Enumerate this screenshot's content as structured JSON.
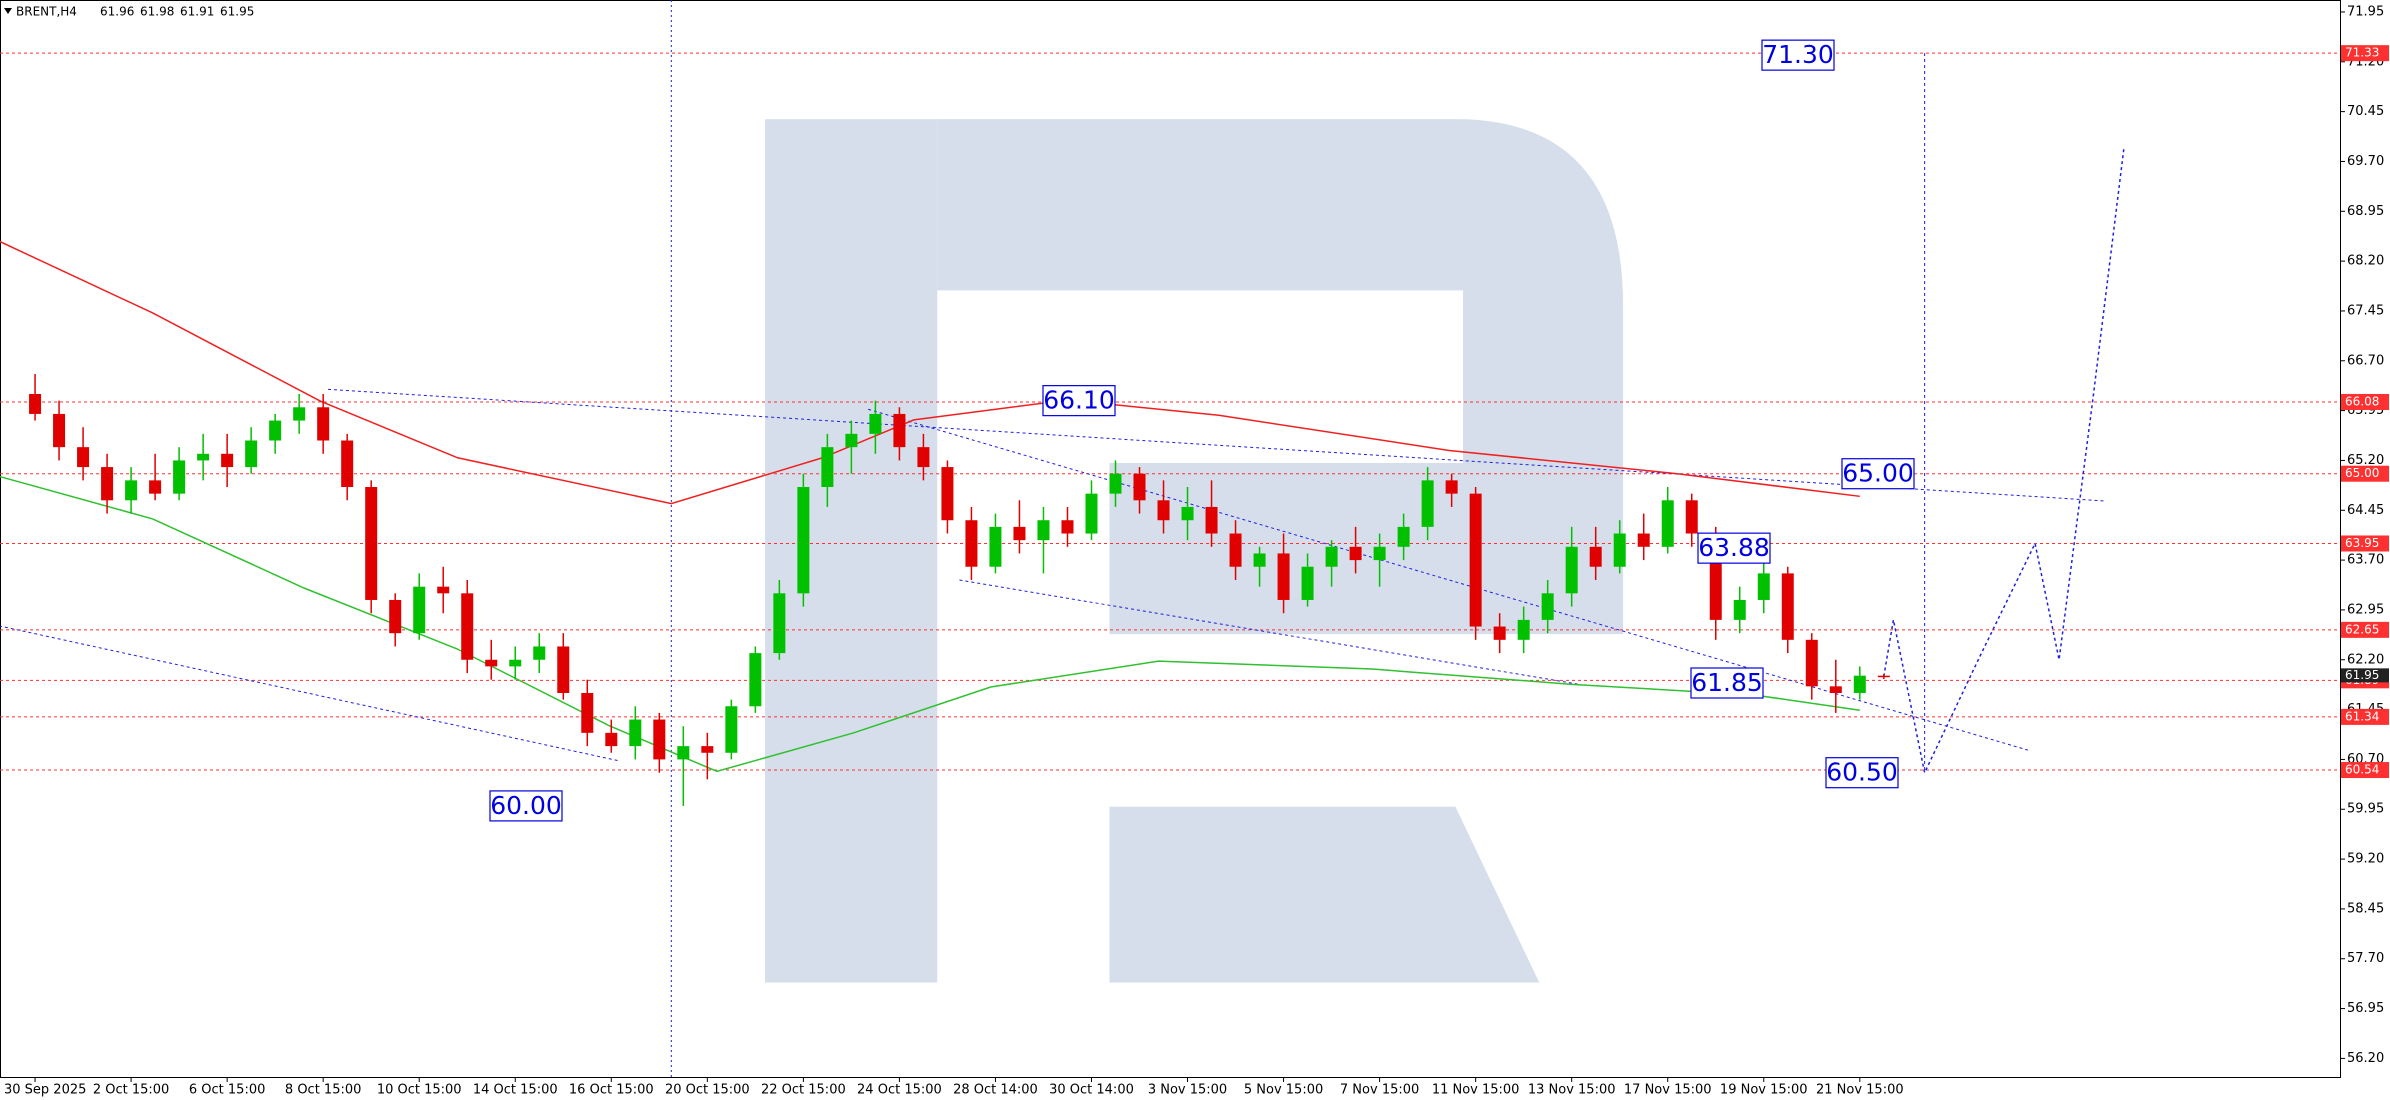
{
  "chart_data": {
    "type": "candlestick",
    "title": "BRENT,H4",
    "categories": [
      "30 Sep 2025",
      null,
      null,
      null,
      "2 Oct 15:00",
      null,
      null,
      null,
      "6 Oct 15:00",
      null,
      null,
      null,
      "8 Oct 15:00",
      null,
      null,
      null,
      "10 Oct 15:00",
      null,
      null,
      null,
      "14 Oct 15:00",
      null,
      null,
      null,
      "16 Oct 15:00",
      null,
      null,
      null,
      "20 Oct 15:00",
      null,
      null,
      null,
      "22 Oct 15:00",
      null,
      null,
      null,
      "24 Oct 15:00",
      null,
      null,
      null,
      "28 Oct 14:00",
      null,
      null,
      null,
      "30 Oct 14:00",
      null,
      null,
      null,
      "3 Nov 15:00",
      null,
      null,
      null,
      "5 Nov 15:00",
      null,
      null,
      null,
      "7 Nov 15:00",
      null,
      null,
      null,
      "11 Nov 15:00",
      null,
      null,
      null,
      "13 Nov 15:00",
      null,
      null,
      null,
      "17 Nov 15:00",
      null,
      null,
      null,
      "19 Nov 15:00",
      null,
      null,
      null,
      "21 Nov 15:00",
      null
    ],
    "ohlc": [
      [
        66.2,
        66.5,
        65.8,
        65.9
      ],
      [
        65.9,
        66.1,
        65.2,
        65.4
      ],
      [
        65.4,
        65.7,
        64.9,
        65.1
      ],
      [
        65.1,
        65.3,
        64.4,
        64.6
      ],
      [
        64.6,
        65.1,
        64.4,
        64.9
      ],
      [
        64.9,
        65.3,
        64.6,
        64.7
      ],
      [
        64.7,
        65.4,
        64.6,
        65.2
      ],
      [
        65.2,
        65.6,
        64.9,
        65.3
      ],
      [
        65.3,
        65.6,
        64.8,
        65.1
      ],
      [
        65.1,
        65.7,
        65.0,
        65.5
      ],
      [
        65.5,
        65.9,
        65.3,
        65.8
      ],
      [
        65.8,
        66.2,
        65.6,
        66.0
      ],
      [
        66.0,
        66.2,
        65.3,
        65.5
      ],
      [
        65.5,
        65.6,
        64.6,
        64.8
      ],
      [
        64.8,
        64.9,
        62.9,
        63.1
      ],
      [
        63.1,
        63.2,
        62.4,
        62.6
      ],
      [
        62.6,
        63.5,
        62.5,
        63.3
      ],
      [
        63.3,
        63.6,
        62.9,
        63.2
      ],
      [
        63.2,
        63.4,
        62.0,
        62.2
      ],
      [
        62.2,
        62.5,
        61.9,
        62.1
      ],
      [
        62.1,
        62.4,
        61.9,
        62.2
      ],
      [
        62.2,
        62.6,
        62.0,
        62.4
      ],
      [
        62.4,
        62.6,
        61.6,
        61.7
      ],
      [
        61.7,
        61.9,
        60.9,
        61.1
      ],
      [
        61.1,
        61.3,
        60.8,
        60.9
      ],
      [
        60.9,
        61.5,
        60.7,
        61.3
      ],
      [
        61.3,
        61.4,
        60.5,
        60.7
      ],
      [
        60.7,
        61.2,
        60.0,
        60.9
      ],
      [
        60.9,
        61.1,
        60.4,
        60.8
      ],
      [
        60.8,
        61.6,
        60.7,
        61.5
      ],
      [
        61.5,
        62.4,
        61.4,
        62.3
      ],
      [
        62.3,
        63.4,
        62.2,
        63.2
      ],
      [
        63.2,
        65.0,
        63.0,
        64.8
      ],
      [
        64.8,
        65.6,
        64.5,
        65.4
      ],
      [
        65.4,
        65.8,
        65.0,
        65.6
      ],
      [
        65.6,
        66.1,
        65.3,
        65.9
      ],
      [
        65.9,
        66.0,
        65.2,
        65.4
      ],
      [
        65.4,
        65.6,
        64.9,
        65.1
      ],
      [
        65.1,
        65.2,
        64.1,
        64.3
      ],
      [
        64.3,
        64.5,
        63.4,
        63.6
      ],
      [
        63.6,
        64.4,
        63.5,
        64.2
      ],
      [
        64.2,
        64.6,
        63.8,
        64.0
      ],
      [
        64.0,
        64.5,
        63.5,
        64.3
      ],
      [
        64.3,
        64.5,
        63.9,
        64.1
      ],
      [
        64.1,
        64.9,
        64.0,
        64.7
      ],
      [
        64.7,
        65.2,
        64.5,
        65.0
      ],
      [
        65.0,
        65.1,
        64.4,
        64.6
      ],
      [
        64.6,
        64.9,
        64.1,
        64.3
      ],
      [
        64.3,
        64.8,
        64.0,
        64.5
      ],
      [
        64.5,
        64.9,
        63.9,
        64.1
      ],
      [
        64.1,
        64.3,
        63.4,
        63.6
      ],
      [
        63.6,
        63.9,
        63.3,
        63.8
      ],
      [
        63.8,
        64.1,
        62.9,
        63.1
      ],
      [
        63.1,
        63.8,
        63.0,
        63.6
      ],
      [
        63.6,
        64.0,
        63.3,
        63.9
      ],
      [
        63.9,
        64.2,
        63.5,
        63.7
      ],
      [
        63.7,
        64.1,
        63.3,
        63.9
      ],
      [
        63.9,
        64.4,
        63.7,
        64.2
      ],
      [
        64.2,
        65.1,
        64.0,
        64.9
      ],
      [
        64.9,
        65.0,
        64.5,
        64.7
      ],
      [
        64.7,
        64.8,
        62.5,
        62.7
      ],
      [
        62.7,
        62.9,
        62.3,
        62.5
      ],
      [
        62.5,
        63.0,
        62.3,
        62.8
      ],
      [
        62.8,
        63.4,
        62.6,
        63.2
      ],
      [
        63.2,
        64.2,
        63.0,
        63.9
      ],
      [
        63.9,
        64.2,
        63.4,
        63.6
      ],
      [
        63.6,
        64.3,
        63.5,
        64.1
      ],
      [
        64.1,
        64.4,
        63.7,
        63.9
      ],
      [
        63.9,
        64.8,
        63.8,
        64.6
      ],
      [
        64.6,
        64.7,
        63.9,
        64.1
      ],
      [
        64.1,
        64.2,
        62.5,
        62.8
      ],
      [
        62.8,
        63.3,
        62.6,
        63.1
      ],
      [
        63.1,
        63.7,
        62.9,
        63.5
      ],
      [
        63.5,
        63.6,
        62.3,
        62.5
      ],
      [
        62.5,
        62.6,
        61.6,
        61.8
      ],
      [
        61.8,
        62.2,
        61.4,
        61.7
      ],
      [
        61.7,
        62.1,
        61.6,
        61.96
      ],
      [
        61.96,
        61.98,
        61.91,
        61.95
      ]
    ],
    "up_color": "#00c000",
    "down_color": "#e00000",
    "indicators": [
      {
        "color": "#f02020",
        "x": [
          -1.5,
          4.9,
          11.9,
          17.6,
          26.5,
          32.8,
          36.6,
          43,
          49.3,
          58.9,
          68.4,
          76
        ],
        "values": [
          68.5,
          67.42,
          66.09,
          65.24,
          64.55,
          65.24,
          65.81,
          66.11,
          65.88,
          65.35,
          65.0,
          64.66
        ]
      },
      {
        "color": "#30c030",
        "x": [
          -1.5,
          4.9,
          11.2,
          17.6,
          23.9,
          28.4,
          34.1,
          39.8,
          46.8,
          55.7,
          64,
          71.6,
          76
        ],
        "values": [
          64.96,
          64.32,
          63.28,
          62.36,
          61.21,
          60.52,
          61.1,
          61.79,
          62.18,
          62.06,
          61.83,
          61.67,
          61.44
        ]
      }
    ],
    "forecast": {
      "color": "#2020e0",
      "x": [
        77,
        77.4,
        78.7,
        81,
        83.3,
        84.3,
        85.7,
        87
      ],
      "values": [
        61.95,
        62.8,
        60.5,
        62.25,
        63.95,
        62.2,
        66.1,
        69.9
      ]
    },
    "trendlines": [
      {
        "x": [
          -1.5,
          24.3
        ],
        "values": [
          62.71,
          60.68
        ]
      },
      {
        "x": [
          12.2,
          86.2
        ],
        "values": [
          66.27,
          64.59
        ]
      },
      {
        "x": [
          34.7,
          83
        ],
        "values": [
          65.97,
          60.84
        ]
      },
      {
        "x": [
          38.5,
          64.3
        ],
        "values": [
          63.4,
          61.83
        ]
      },
      {
        "x": [
          78.7,
          78.7
        ],
        "values": [
          60.54,
          71.33
        ]
      }
    ],
    "vlines": [
      26.5
    ],
    "levels_color": "#ff3030",
    "levels": [
      71.33,
      66.08,
      {
        "value": 65,
        "label": "65.00"
      },
      63.95,
      62.65,
      61.89,
      61.34,
      60.54
    ],
    "annotations": [
      {
        "value": 71.3,
        "label": "71.30"
      },
      {
        "value": 66.1,
        "label": "66.10"
      },
      {
        "value": 65,
        "label": "65.00"
      },
      63.88,
      61.85,
      {
        "value": 60.5,
        "label": "60.50"
      },
      {
        "value": 60,
        "label": "60.00"
      }
    ],
    "xlim": [
      -1.46,
      96
    ],
    "ylim": [
      55.92,
      72.13
    ],
    "yticks": [
      71.95,
      {
        "value": 71.2,
        "label": "71.20"
      },
      70.45,
      {
        "value": 69.7,
        "label": "69.70"
      },
      68.95,
      {
        "value": 68.2,
        "label": "68.20"
      },
      67.45,
      {
        "value": 66.7,
        "label": "66.70"
      },
      65.95,
      {
        "value": 65.2,
        "label": "65.20"
      },
      64.45,
      {
        "value": 63.7,
        "label": "63.70"
      },
      62.95,
      {
        "value": 62.2,
        "label": "62.20"
      },
      61.45,
      {
        "value": 60.7,
        "label": "60.70"
      },
      59.95,
      {
        "value": 59.2,
        "label": "59.20"
      },
      58.45,
      {
        "value": 57.7,
        "label": "57.70"
      },
      56.95,
      {
        "value": 56.2,
        "label": "56.20"
      }
    ]
  }
}
